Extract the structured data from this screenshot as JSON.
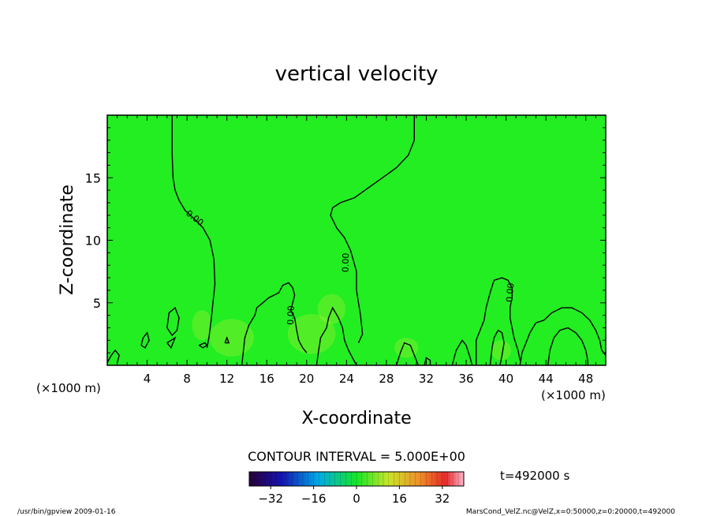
{
  "chart_data": {
    "type": "contour",
    "title": "vertical velocity",
    "xlabel": "X-coordinate",
    "ylabel": "Z-coordinate",
    "x_unit_left": "(×1000 m)",
    "x_unit_right": "(×1000 m)",
    "xlim": [
      0,
      50
    ],
    "ylim": [
      0,
      20
    ],
    "x_ticks": [
      4,
      8,
      12,
      16,
      20,
      24,
      28,
      32,
      36,
      40,
      44,
      48
    ],
    "y_ticks": [
      5,
      10,
      15
    ],
    "fill_color": "#22ee22",
    "contour_interval_text": "CONTOUR INTERVAL = 5.000E+00",
    "contour_labels": [
      "0.00",
      "0.00",
      "0.00",
      "0.00"
    ],
    "contours": [
      [
        [
          6.5,
          20
        ],
        [
          6.5,
          17
        ],
        [
          6.6,
          15
        ],
        [
          6.8,
          14
        ],
        [
          7.2,
          13.2
        ],
        [
          7.8,
          12.4
        ],
        [
          8.6,
          11.8
        ],
        [
          9.6,
          11
        ],
        [
          10.3,
          10
        ],
        [
          10.7,
          8.5
        ],
        [
          10.8,
          6.5
        ],
        [
          10.6,
          5
        ],
        [
          10.4,
          3.5
        ],
        [
          10.2,
          2.2
        ],
        [
          10.0,
          1.4
        ]
      ],
      [
        [
          30.8,
          20
        ],
        [
          30.8,
          18
        ],
        [
          30.2,
          16.8
        ],
        [
          29,
          15.8
        ],
        [
          27.6,
          15
        ],
        [
          26.2,
          14.2
        ],
        [
          24.8,
          13.4
        ],
        [
          23.4,
          13
        ],
        [
          22.6,
          12.6
        ],
        [
          22.4,
          12
        ],
        [
          23.0,
          11
        ],
        [
          23.8,
          10.2
        ],
        [
          24.4,
          9.2
        ],
        [
          25.0,
          7.5
        ],
        [
          25.0,
          6.0
        ],
        [
          25.2,
          5.0
        ],
        [
          25.4,
          4.0
        ],
        [
          25.6,
          2.5
        ],
        [
          25.2,
          1.8
        ]
      ],
      [
        [
          13.5,
          0
        ],
        [
          13.8,
          2.2
        ],
        [
          14.2,
          3.2
        ],
        [
          14.8,
          4.0
        ],
        [
          15.0,
          4.6
        ],
        [
          15.6,
          5.0
        ],
        [
          16.2,
          5.4
        ],
        [
          17.2,
          5.8
        ],
        [
          17.6,
          6.4
        ],
        [
          18.2,
          6.6
        ],
        [
          18.6,
          6.2
        ],
        [
          18.8,
          5.6
        ],
        [
          18.6,
          5.0
        ],
        [
          18.4,
          4.4
        ],
        [
          18.8,
          3.8
        ],
        [
          19.0,
          2.8
        ],
        [
          19.2,
          2.0
        ],
        [
          19.6,
          1.4
        ],
        [
          20.0,
          1.0
        ]
      ],
      [
        [
          21.0,
          0
        ],
        [
          21.2,
          1.2
        ],
        [
          21.4,
          2.2
        ],
        [
          22.0,
          3.0
        ],
        [
          22.2,
          3.8
        ],
        [
          22.6,
          4.6
        ],
        [
          23.2,
          3.8
        ],
        [
          23.6,
          3.0
        ],
        [
          23.8,
          2.0
        ],
        [
          24.2,
          1.2
        ],
        [
          24.6,
          0.6
        ],
        [
          25.0,
          0
        ]
      ],
      [
        [
          29.0,
          0
        ],
        [
          29.4,
          1.0
        ],
        [
          29.8,
          1.8
        ],
        [
          30.4,
          1.6
        ],
        [
          30.8,
          0.8
        ],
        [
          31.2,
          0
        ]
      ],
      [
        [
          34.6,
          0
        ],
        [
          35.0,
          1.2
        ],
        [
          35.6,
          2.0
        ],
        [
          36.0,
          1.6
        ],
        [
          36.4,
          0.6
        ],
        [
          36.6,
          0
        ]
      ],
      [
        [
          37.0,
          0
        ],
        [
          37.0,
          2.0
        ],
        [
          37.4,
          2.8
        ],
        [
          37.8,
          3.6
        ],
        [
          38.0,
          4.6
        ],
        [
          38.4,
          5.8
        ],
        [
          38.8,
          6.8
        ],
        [
          39.6,
          7.0
        ],
        [
          40.2,
          6.8
        ],
        [
          40.6,
          6.2
        ],
        [
          40.6,
          5.4
        ],
        [
          40.4,
          4.6
        ],
        [
          40.4,
          3.8
        ],
        [
          40.6,
          3.0
        ],
        [
          40.8,
          2.2
        ],
        [
          41.2,
          1.2
        ],
        [
          41.4,
          0.4
        ]
      ],
      [
        [
          38.4,
          0
        ],
        [
          38.6,
          1.4
        ],
        [
          38.8,
          2.2
        ],
        [
          39.2,
          2.8
        ],
        [
          39.6,
          2.6
        ],
        [
          39.8,
          1.8
        ],
        [
          39.6,
          0.8
        ],
        [
          39.4,
          0
        ]
      ],
      [
        [
          41.4,
          0
        ],
        [
          41.6,
          1.0
        ],
        [
          42.0,
          1.8
        ],
        [
          42.4,
          2.6
        ],
        [
          43.0,
          3.4
        ],
        [
          43.8,
          3.6
        ],
        [
          44.6,
          4.2
        ],
        [
          45.6,
          4.6
        ],
        [
          46.6,
          4.6
        ],
        [
          47.6,
          4.2
        ],
        [
          48.4,
          3.6
        ],
        [
          49.0,
          2.8
        ],
        [
          49.4,
          2.0
        ],
        [
          49.6,
          1.2
        ],
        [
          50,
          0.8
        ]
      ],
      [
        [
          44.2,
          0
        ],
        [
          44.4,
          1.2
        ],
        [
          44.8,
          2.2
        ],
        [
          45.4,
          2.8
        ],
        [
          46.2,
          3.0
        ],
        [
          47.0,
          2.6
        ],
        [
          47.6,
          2.0
        ],
        [
          48.0,
          1.2
        ],
        [
          48.2,
          0.4
        ],
        [
          48.2,
          0
        ]
      ],
      [
        [
          0,
          0.2
        ],
        [
          0.4,
          0.8
        ],
        [
          0.8,
          1.2
        ],
        [
          1.2,
          0.8
        ],
        [
          1.0,
          0.2
        ]
      ],
      [
        [
          3.4,
          1.6
        ],
        [
          3.6,
          2.2
        ],
        [
          4.0,
          2.6
        ],
        [
          4.2,
          2.0
        ],
        [
          3.8,
          1.4
        ],
        [
          3.4,
          1.6
        ]
      ],
      [
        [
          6.0,
          3.0
        ],
        [
          6.2,
          4.2
        ],
        [
          6.8,
          4.6
        ],
        [
          7.2,
          3.8
        ],
        [
          7.0,
          2.8
        ],
        [
          6.5,
          2.4
        ],
        [
          6.0,
          3.0
        ]
      ],
      [
        [
          6.0,
          1.8
        ],
        [
          6.4,
          2.0
        ],
        [
          6.8,
          2.2
        ],
        [
          6.4,
          1.4
        ],
        [
          6.0,
          1.8
        ]
      ],
      [
        [
          9.2,
          1.6
        ],
        [
          9.8,
          1.8
        ],
        [
          10.0,
          1.6
        ],
        [
          9.6,
          1.4
        ],
        [
          9.2,
          1.6
        ]
      ],
      [
        [
          11.8,
          1.8
        ],
        [
          12.0,
          2.2
        ],
        [
          12.2,
          1.8
        ],
        [
          11.8,
          1.8
        ]
      ],
      [
        [
          31.8,
          0
        ],
        [
          32.0,
          0.6
        ],
        [
          32.4,
          0.4
        ],
        [
          32.4,
          0
        ]
      ]
    ],
    "colorbar": {
      "ticks": [
        -32,
        -16,
        0,
        16,
        32
      ],
      "range": [
        -40,
        40
      ]
    },
    "time_label": "t=492000 s"
  },
  "footer": {
    "left": "/usr/bin/gpview   2009-01-16",
    "right": "MarsCond_VelZ.nc@VelZ,x=0:50000,z=0:20000,t=492000"
  }
}
